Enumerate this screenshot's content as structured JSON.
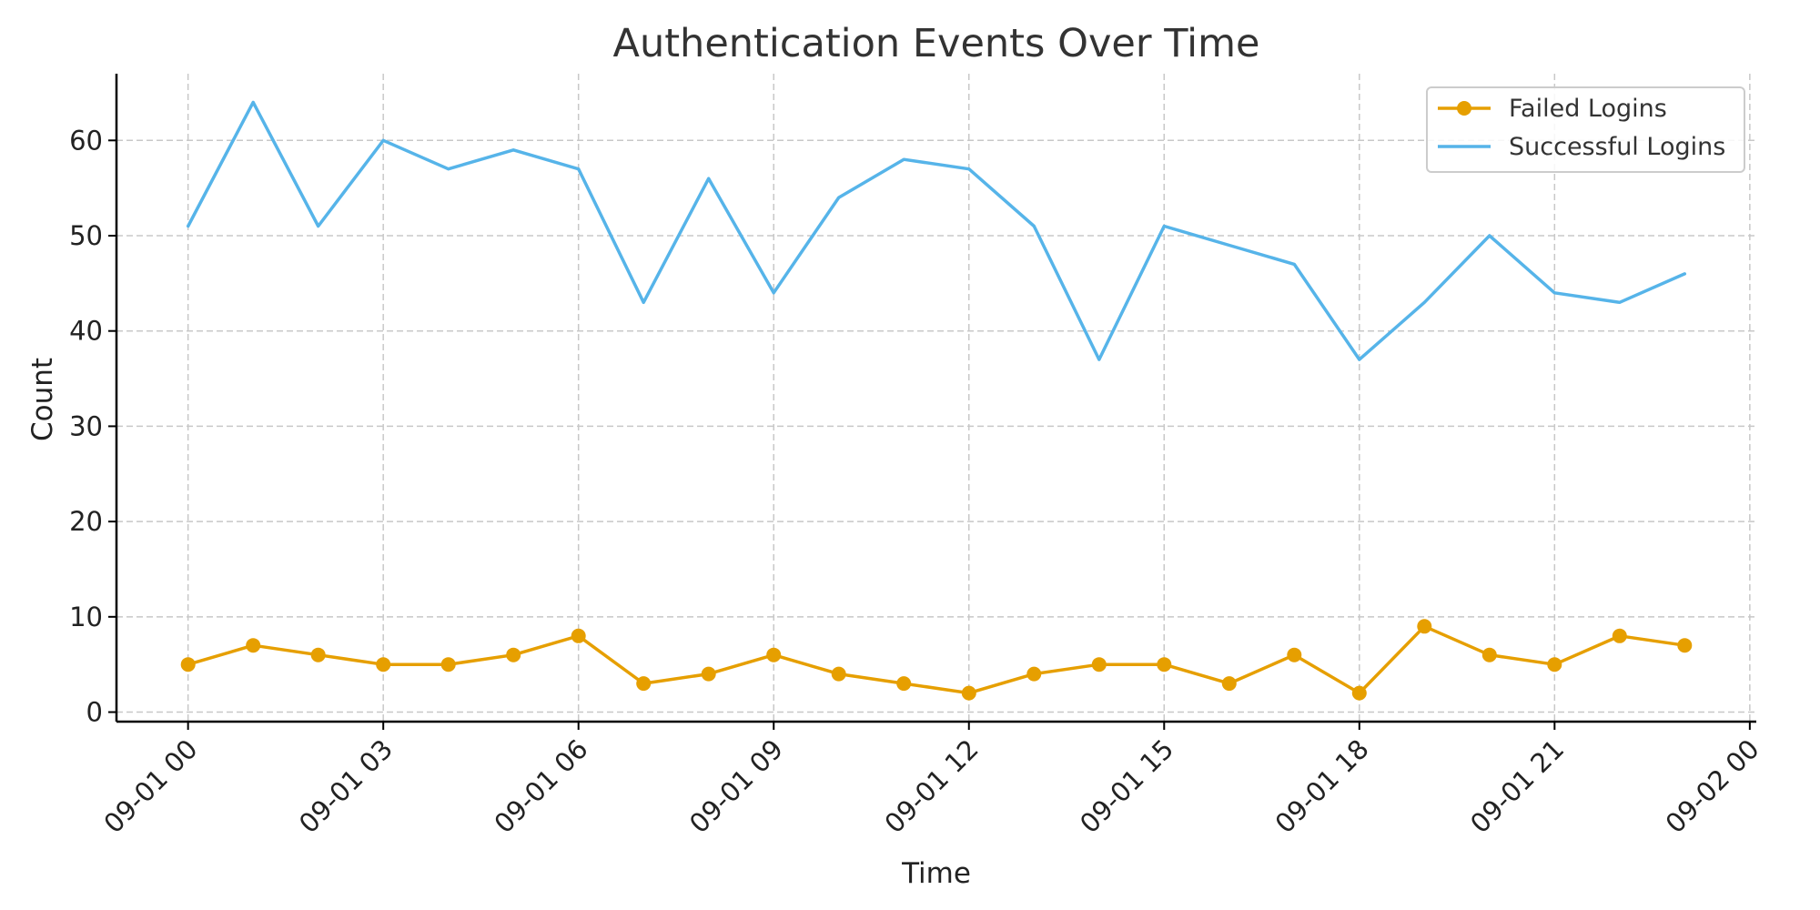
{
  "chart_data": {
    "type": "line",
    "title": "Authentication Events Over Time",
    "xlabel": "Time",
    "ylabel": "Count",
    "x_tick_labels": [
      "09-01 00",
      "09-01 03",
      "09-01 06",
      "09-01 09",
      "09-01 12",
      "09-01 15",
      "09-01 18",
      "09-01 21",
      "09-02 00"
    ],
    "x_tick_hours": [
      0,
      3,
      6,
      9,
      12,
      15,
      18,
      21,
      24
    ],
    "x_hours": [
      0,
      1,
      2,
      3,
      4,
      5,
      6,
      7,
      8,
      9,
      10,
      11,
      12,
      13,
      14,
      15,
      16,
      17,
      18,
      19,
      20,
      21,
      22,
      23
    ],
    "y_ticks": [
      0,
      10,
      20,
      30,
      40,
      50,
      60
    ],
    "xlim": [
      -1.1,
      24.1
    ],
    "ylim": [
      -1,
      67
    ],
    "grid": true,
    "legend_position": "top-right",
    "series": [
      {
        "name": "Failed Logins",
        "color": "#E69F00",
        "marker": "circle",
        "values": [
          5,
          7,
          6,
          5,
          5,
          6,
          8,
          3,
          4,
          6,
          4,
          3,
          2,
          4,
          5,
          5,
          3,
          6,
          2,
          9,
          6,
          5,
          8,
          7
        ]
      },
      {
        "name": "Successful Logins",
        "color": "#56B4E9",
        "marker": "none",
        "values": [
          51,
          64,
          51,
          60,
          57,
          59,
          57,
          43,
          56,
          44,
          54,
          58,
          57,
          51,
          37,
          51,
          49,
          47,
          37,
          43,
          50,
          44,
          43,
          46
        ]
      }
    ]
  }
}
